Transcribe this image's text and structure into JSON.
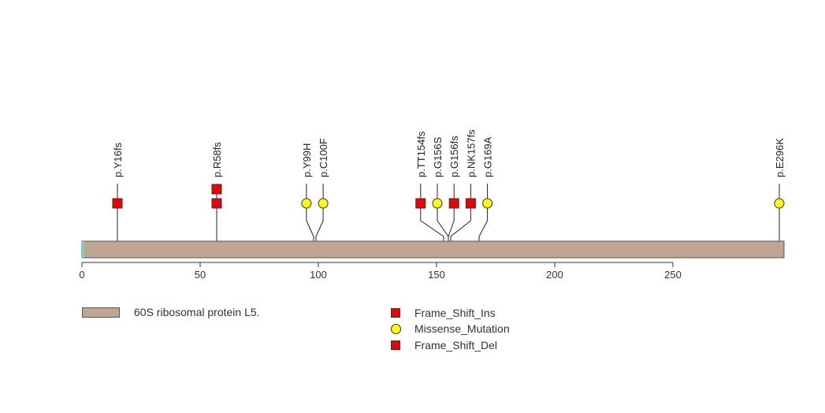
{
  "chart_data": {
    "type": "scatter",
    "title": "",
    "xlabel": "",
    "ylabel": "",
    "xlim": [
      0,
      297
    ],
    "x_ticks": [
      0,
      50,
      100,
      150,
      200,
      250
    ],
    "protein": {
      "length": 297,
      "color": "#bfa592",
      "domains": [
        {
          "name": "60S ribosomal protein L5.",
          "start": 1,
          "end": 297,
          "color": "#bfa592"
        }
      ]
    },
    "mutations": [
      {
        "label": "p.Y16fs",
        "position": 15,
        "type": "Frame_Shift_Del",
        "count": 1
      },
      {
        "label": "p.R58fs",
        "position": 57,
        "type": "Frame_Shift_Del",
        "count": 2
      },
      {
        "label": "p.Y99H",
        "position": 98,
        "type": "Missense_Mutation",
        "count": 1
      },
      {
        "label": "p.C100F",
        "position": 99,
        "type": "Missense_Mutation",
        "count": 1
      },
      {
        "label": "p.TT154fs",
        "position": 153,
        "type": "Frame_Shift_Del",
        "count": 1
      },
      {
        "label": "p.G156S",
        "position": 155,
        "type": "Missense_Mutation",
        "count": 1
      },
      {
        "label": "p.G156fs",
        "position": 155,
        "type": "Frame_Shift_Del",
        "count": 1
      },
      {
        "label": "p.NK157fs",
        "position": 156,
        "type": "Frame_Shift_Ins",
        "count": 1
      },
      {
        "label": "p.G169A",
        "position": 168,
        "type": "Missense_Mutation",
        "count": 1
      },
      {
        "label": "p.E296K",
        "position": 295,
        "type": "Missense_Mutation",
        "count": 1
      }
    ],
    "legend": {
      "domains": [
        {
          "label": "60S ribosomal protein L5.",
          "color": "#bfa592"
        }
      ],
      "mutation_types": [
        {
          "label": "Frame_Shift_Ins",
          "shape": "square",
          "color": "#ee0000"
        },
        {
          "label": "Missense_Mutation",
          "shape": "circle",
          "color": "#ffff00"
        },
        {
          "label": "Frame_Shift_Del",
          "shape": "square",
          "color": "#ee0000"
        }
      ]
    }
  }
}
